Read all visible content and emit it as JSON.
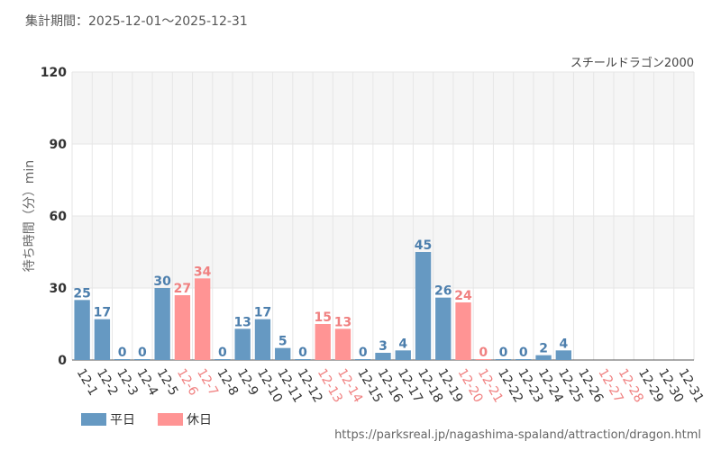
{
  "header": {
    "period": "集計期間：2025-12-01〜2025-12-31",
    "series_name": "スチールドラゴン2000"
  },
  "source_url": "https://parksreal.jp/nagashima-spaland/attraction/dragon.html",
  "colors": {
    "weekday": "#6699c2",
    "holiday": "#ff9494",
    "weekday_text": "#4d7fad",
    "holiday_text": "#f08080",
    "band": "#f5f5f5",
    "grid": "#e6e6e6"
  },
  "chart_data": {
    "type": "bar",
    "title": "",
    "xlabel": "",
    "ylabel": "待ち時間（分）min",
    "ylim": [
      0,
      120
    ],
    "yticks": [
      0,
      30,
      60,
      90,
      120
    ],
    "categories": [
      "12-1",
      "12-2",
      "12-3",
      "12-4",
      "12-5",
      "12-6",
      "12-7",
      "12-8",
      "12-9",
      "12-10",
      "12-11",
      "12-12",
      "12-13",
      "12-14",
      "12-15",
      "12-16",
      "12-17",
      "12-18",
      "12-19",
      "12-20",
      "12-21",
      "12-22",
      "12-23",
      "12-24",
      "12-25",
      "12-26",
      "12-27",
      "12-28",
      "12-29",
      "12-30",
      "12-31"
    ],
    "values": [
      25,
      17,
      0,
      0,
      30,
      27,
      34,
      0,
      13,
      17,
      5,
      0,
      15,
      13,
      0,
      3,
      4,
      45,
      26,
      24,
      0,
      0,
      0,
      2,
      4,
      null,
      null,
      null,
      null,
      null,
      null
    ],
    "day_type": [
      "weekday",
      "weekday",
      "weekday",
      "weekday",
      "weekday",
      "holiday",
      "holiday",
      "weekday",
      "weekday",
      "weekday",
      "weekday",
      "weekday",
      "holiday",
      "holiday",
      "weekday",
      "weekday",
      "weekday",
      "weekday",
      "weekday",
      "holiday",
      "holiday",
      "weekday",
      "weekday",
      "weekday",
      "weekday",
      "weekday",
      "holiday",
      "holiday",
      "weekday",
      "weekday",
      "weekday"
    ],
    "legend": [
      {
        "key": "weekday",
        "label": "平日"
      },
      {
        "key": "holiday",
        "label": "休日"
      }
    ]
  }
}
